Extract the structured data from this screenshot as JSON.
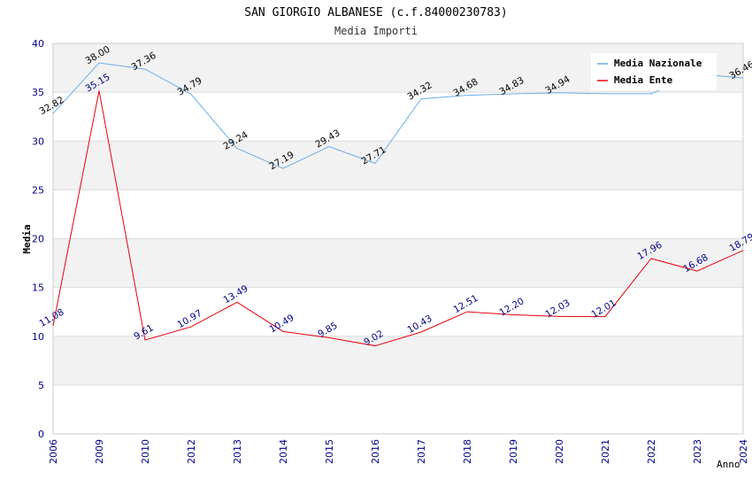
{
  "chart_data": {
    "type": "line",
    "title": "SAN GIORGIO ALBANESE (c.f.84000230783)",
    "subtitle": "Media Importi",
    "xlabel": "Anno",
    "ylabel": "Media",
    "ylim": [
      0,
      40
    ],
    "yticks": [
      0,
      5,
      10,
      15,
      20,
      25,
      30,
      35,
      40
    ],
    "categories": [
      "2006",
      "2009",
      "2010",
      "2012",
      "2013",
      "2014",
      "2015",
      "2016",
      "2017",
      "2018",
      "2019",
      "2020",
      "2021",
      "2022",
      "2023",
      "2024"
    ],
    "grid": true,
    "legend_position": "top-right",
    "series": [
      {
        "name": "Media Nazionale",
        "color": "#6aaeea",
        "label_color": "#000000",
        "values": [
          32.82,
          38.0,
          37.36,
          34.79,
          29.24,
          27.19,
          29.43,
          27.71,
          34.32,
          34.68,
          34.83,
          34.94,
          34.84,
          34.84,
          36.86,
          36.46
        ],
        "labels": [
          "32.82",
          "38.00",
          "37.36",
          "34.79",
          "29.24",
          "27.19",
          "29.43",
          "27.71",
          "34.32",
          "34.68",
          "34.83",
          "34.94",
          "",
          "",
          "",
          "36.46"
        ]
      },
      {
        "name": "Media Ente",
        "color": "#e8000b",
        "label_color": "#00008b",
        "values": [
          11.08,
          35.15,
          9.61,
          10.97,
          13.49,
          10.49,
          9.85,
          9.02,
          10.43,
          12.51,
          12.2,
          12.03,
          12.01,
          17.96,
          16.68,
          18.79
        ],
        "labels": [
          "11.08",
          "35.15",
          "9.61",
          "10.97",
          "13.49",
          "10.49",
          "9.85",
          "9.02",
          "10.43",
          "12.51",
          "12.20",
          "12.03",
          "12.01",
          "17.96",
          "16.68",
          "18.79"
        ]
      }
    ]
  }
}
